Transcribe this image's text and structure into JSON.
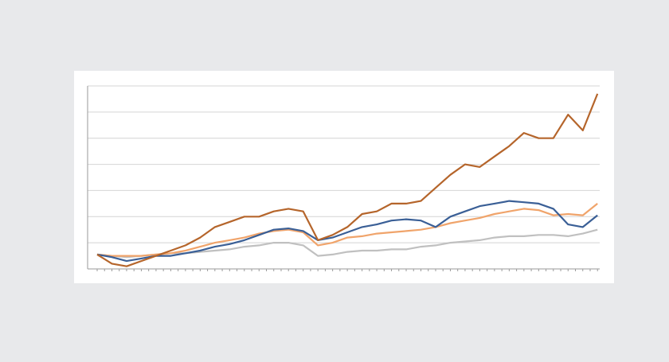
{
  "chart_data": {
    "type": "line",
    "x": [
      0,
      2,
      4,
      6,
      8,
      10,
      12,
      14,
      16,
      18,
      20,
      22,
      24,
      26,
      28,
      30,
      32,
      34,
      36,
      38,
      40,
      42,
      44,
      46,
      48,
      50,
      52,
      54,
      56,
      58,
      60,
      62,
      64,
      66,
      68
    ],
    "series": [
      {
        "color": "#c0c0c0",
        "values": [
          0.55,
          0.5,
          0.45,
          0.5,
          0.55,
          0.6,
          0.6,
          0.65,
          0.7,
          0.75,
          0.85,
          0.9,
          1.0,
          1.0,
          0.9,
          0.5,
          0.55,
          0.65,
          0.7,
          0.7,
          0.75,
          0.75,
          0.85,
          0.9,
          1.0,
          1.05,
          1.1,
          1.2,
          1.25,
          1.25,
          1.3,
          1.3,
          1.25,
          1.35,
          1.5
        ]
      },
      {
        "color": "#f0a46b",
        "values": [
          0.55,
          0.5,
          0.5,
          0.5,
          0.55,
          0.6,
          0.7,
          0.85,
          1.0,
          1.1,
          1.2,
          1.35,
          1.45,
          1.5,
          1.4,
          0.9,
          1.0,
          1.2,
          1.25,
          1.35,
          1.4,
          1.45,
          1.5,
          1.6,
          1.75,
          1.85,
          1.95,
          2.1,
          2.2,
          2.3,
          2.25,
          2.05,
          2.1,
          2.05,
          2.5
        ]
      },
      {
        "color": "#3a5f96",
        "values": [
          0.55,
          0.45,
          0.3,
          0.4,
          0.5,
          0.5,
          0.6,
          0.7,
          0.85,
          0.95,
          1.1,
          1.3,
          1.5,
          1.55,
          1.45,
          1.1,
          1.2,
          1.4,
          1.6,
          1.7,
          1.85,
          1.9,
          1.85,
          1.6,
          2.0,
          2.2,
          2.4,
          2.5,
          2.6,
          2.55,
          2.5,
          2.3,
          1.7,
          1.6,
          2.05
        ]
      },
      {
        "color": "#b5652b",
        "values": [
          0.55,
          0.2,
          0.1,
          0.3,
          0.5,
          0.7,
          0.9,
          1.2,
          1.6,
          1.8,
          2.0,
          2.0,
          2.2,
          2.3,
          2.2,
          1.1,
          1.3,
          1.6,
          2.1,
          2.2,
          2.5,
          2.5,
          2.6,
          3.1,
          3.6,
          4.0,
          3.9,
          4.3,
          4.7,
          5.2,
          5.0,
          5.0,
          5.9,
          5.3,
          6.7
        ]
      }
    ],
    "xlim": [
      -1.3,
      68.3
    ],
    "xticks": [
      0,
      1,
      2,
      3,
      4,
      5,
      6,
      7,
      8,
      9,
      10,
      11,
      12,
      13,
      14,
      15,
      16,
      17,
      18,
      19,
      20,
      21,
      22,
      23,
      24,
      25,
      26,
      27,
      28,
      29,
      30,
      31,
      32,
      33,
      34,
      35,
      36,
      37,
      38,
      39,
      40,
      41,
      42,
      43,
      44,
      45,
      46,
      47,
      48,
      49,
      50,
      51,
      52,
      53,
      54,
      55,
      56,
      57,
      58,
      59,
      60,
      61,
      62,
      63,
      64,
      65,
      66,
      67,
      68
    ],
    "ylim": [
      0,
      7
    ],
    "yticks": [
      0,
      1,
      2,
      3,
      4,
      5,
      6,
      7
    ],
    "grid": true
  }
}
